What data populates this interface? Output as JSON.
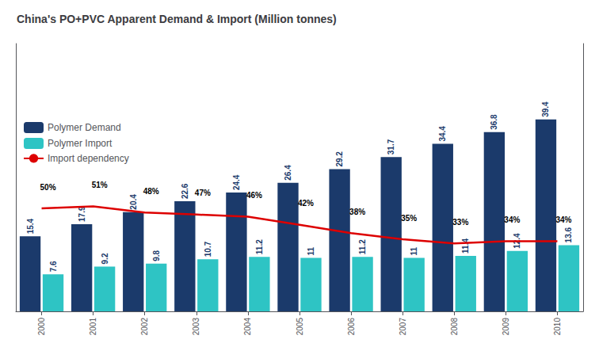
{
  "chart_data": {
    "type": "bar",
    "title": "China's PO+PVC Apparent Demand & Import (Million tonnes)",
    "categories": [
      "2000",
      "2001",
      "2002",
      "2003",
      "2004",
      "2005",
      "2006",
      "2007",
      "2008",
      "2009",
      "2010"
    ],
    "series": [
      {
        "name": "Polymer Demand",
        "color": "#1b3a6b",
        "data_labels": true,
        "values": [
          15.4,
          17.9,
          20.4,
          22.6,
          24.4,
          26.4,
          29.2,
          31.7,
          34.4,
          36.8,
          39.4
        ]
      },
      {
        "name": "Polymer Import",
        "color": "#2ec4c4",
        "data_labels": true,
        "values": [
          7.6,
          9.2,
          9.8,
          10.7,
          11.2,
          11.0,
          11.2,
          11.0,
          11.4,
          12.4,
          13.6
        ]
      },
      {
        "name": "Import dependency",
        "type": "line",
        "axis": "y2",
        "color": "#dd0000",
        "data_labels": true,
        "values": [
          50,
          51,
          48,
          47,
          46,
          42,
          38,
          35,
          33,
          34,
          34
        ],
        "value_labels": [
          "50%",
          "51%",
          "48%",
          "47%",
          "46%",
          "42%",
          "38%",
          "35%",
          "33%",
          "34%",
          "34%"
        ]
      }
    ],
    "ylim": [
      0,
      55
    ],
    "y2lim": [
      0,
      130
    ],
    "tick_labels": "x",
    "legend": "left",
    "grid": false
  }
}
